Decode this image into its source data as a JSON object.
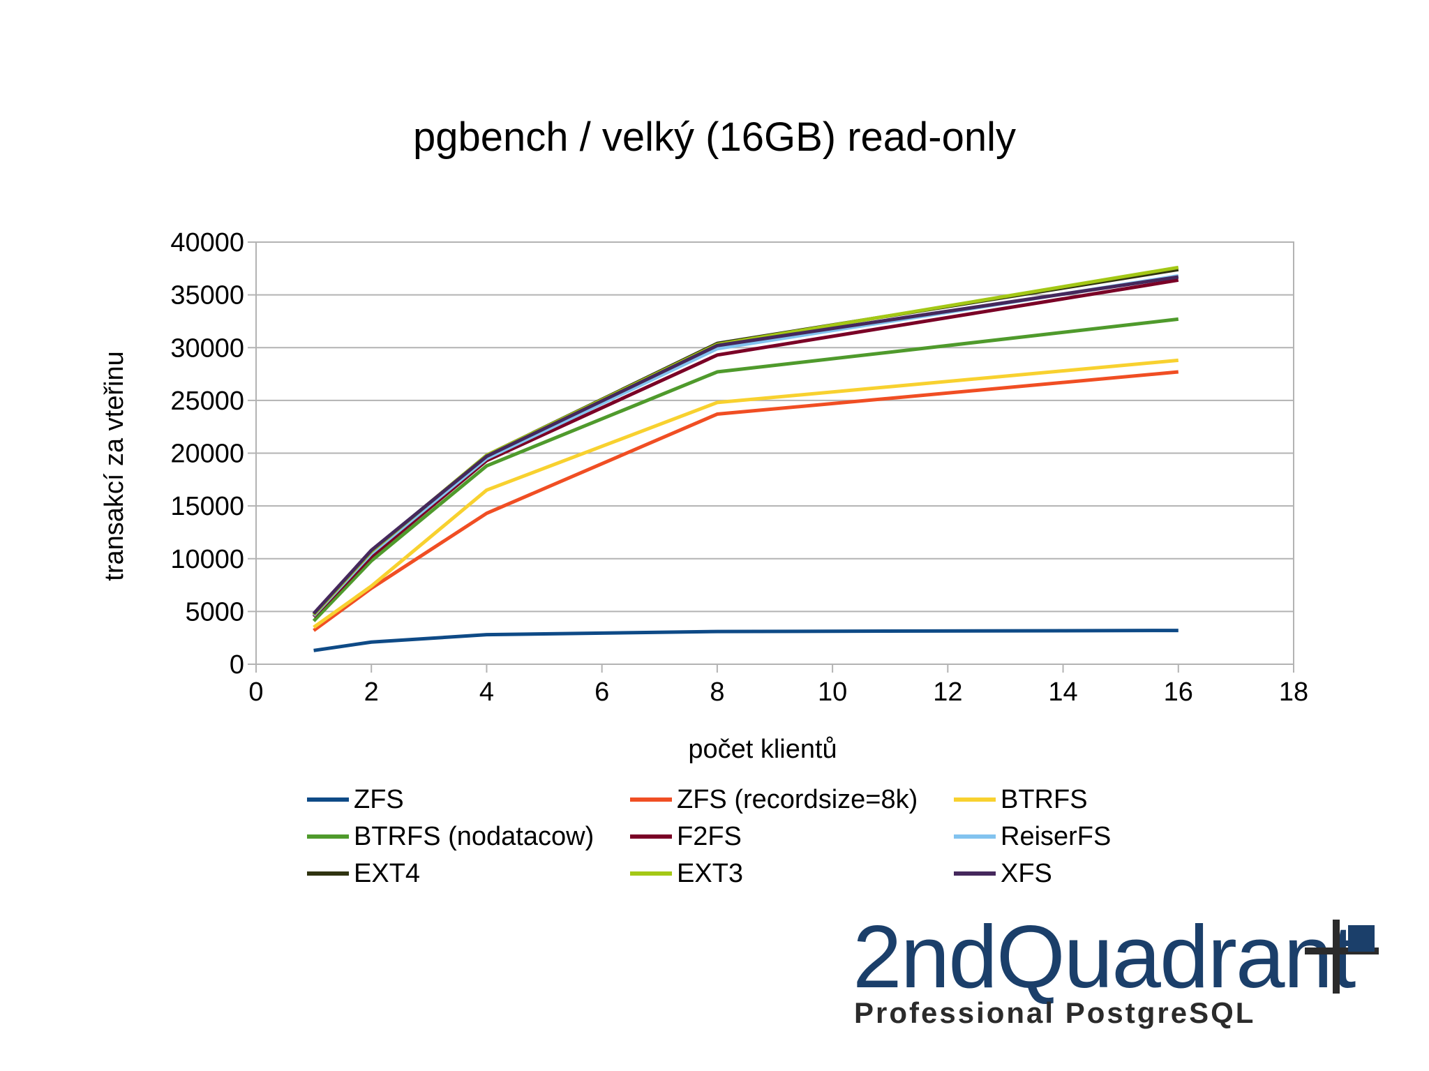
{
  "chart_data": {
    "type": "line",
    "title": "pgbench / velký (16GB) read-only",
    "xlabel": "počet klientů",
    "ylabel": "transakcí za vteřinu",
    "xlim": [
      0,
      18
    ],
    "ylim": [
      0,
      40000
    ],
    "xticks": [
      0,
      2,
      4,
      6,
      8,
      10,
      12,
      14,
      16,
      18
    ],
    "yticks": [
      0,
      5000,
      10000,
      15000,
      20000,
      25000,
      30000,
      35000,
      40000
    ],
    "grid": "horizontal",
    "legend_position": "bottom",
    "x": [
      1,
      2,
      4,
      8,
      16
    ],
    "series": [
      {
        "name": "ZFS",
        "color": "#0e4a86",
        "values": [
          1300,
          2100,
          2800,
          3100,
          3200
        ]
      },
      {
        "name": "ZFS (recordsize=8k)",
        "color": "#f04e23",
        "values": [
          3200,
          7200,
          14300,
          23700,
          27700
        ]
      },
      {
        "name": "BTRFS",
        "color": "#f8d12f",
        "values": [
          3500,
          7400,
          16500,
          24800,
          28800
        ]
      },
      {
        "name": "BTRFS (nodatacow)",
        "color": "#4f9a2c",
        "values": [
          4100,
          9800,
          18800,
          27700,
          32700
        ]
      },
      {
        "name": "F2FS",
        "color": "#7a0026",
        "values": [
          4500,
          10200,
          19300,
          29300,
          36400
        ]
      },
      {
        "name": "ReiserFS",
        "color": "#82c3ef",
        "values": [
          4600,
          10500,
          19500,
          29900,
          36800
        ]
      },
      {
        "name": "EXT4",
        "color": "#2f3311",
        "values": [
          4700,
          10700,
          19800,
          30400,
          37400
        ]
      },
      {
        "name": "EXT3",
        "color": "#a4c816",
        "values": [
          4700,
          10700,
          19800,
          30300,
          37600
        ]
      },
      {
        "name": "XFS",
        "color": "#45285c",
        "values": [
          4800,
          10800,
          19700,
          30200,
          36700
        ]
      }
    ]
  },
  "logo": {
    "wordmark": "2ndQuadrant",
    "tagline": "Professional PostgreSQL",
    "colors": {
      "primary": "#1b3f6a",
      "dark": "#2b2b2b"
    },
    "mark_icon": "plus-square-icon"
  }
}
